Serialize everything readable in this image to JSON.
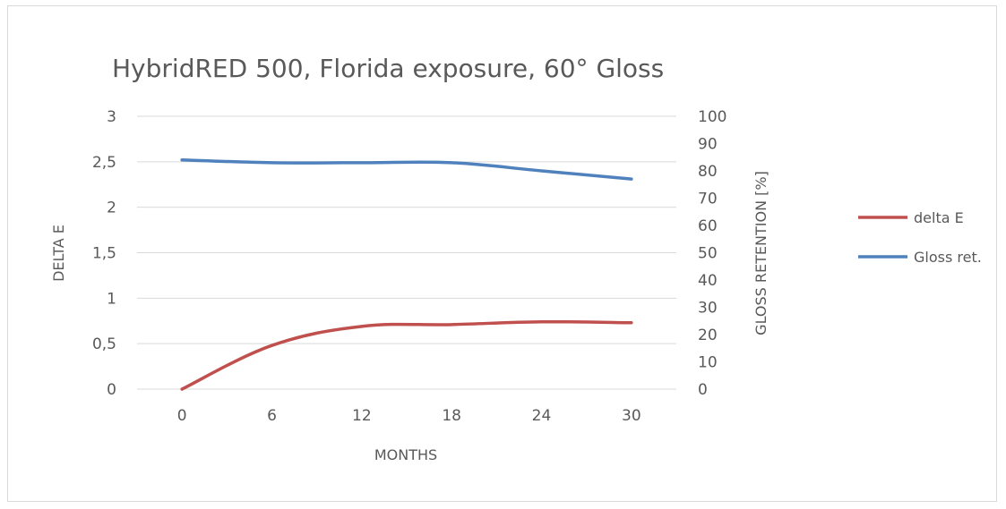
{
  "chart_data": {
    "type": "line",
    "title": "HybridRED 500, Florida exposure, 60° Gloss",
    "xlabel": "MONTHS",
    "ylabel_left": "DELTA E",
    "ylabel_right": "GLOSS RETENTION [%]",
    "categories": [
      "0",
      "6",
      "12",
      "18",
      "24",
      "30"
    ],
    "x": [
      0,
      6,
      12,
      18,
      24,
      30
    ],
    "y_left_range": [
      0,
      3
    ],
    "y_left_ticks": [
      "0",
      "0,5",
      "1",
      "1,5",
      "2",
      "2,5",
      "3"
    ],
    "y_right_range": [
      0,
      100
    ],
    "y_right_ticks": [
      "0",
      "10",
      "20",
      "30",
      "40",
      "50",
      "60",
      "70",
      "80",
      "90",
      "100"
    ],
    "grid": true,
    "legend_position": "right",
    "series": [
      {
        "name": "delta E",
        "axis": "left",
        "color": "#c0504d",
        "values": [
          0,
          0.48,
          0.69,
          0.71,
          0.74,
          0.73
        ]
      },
      {
        "name": "Gloss ret.",
        "axis": "right",
        "color": "#4f81bd",
        "values": [
          84,
          83,
          83,
          83,
          80,
          77
        ]
      }
    ]
  }
}
